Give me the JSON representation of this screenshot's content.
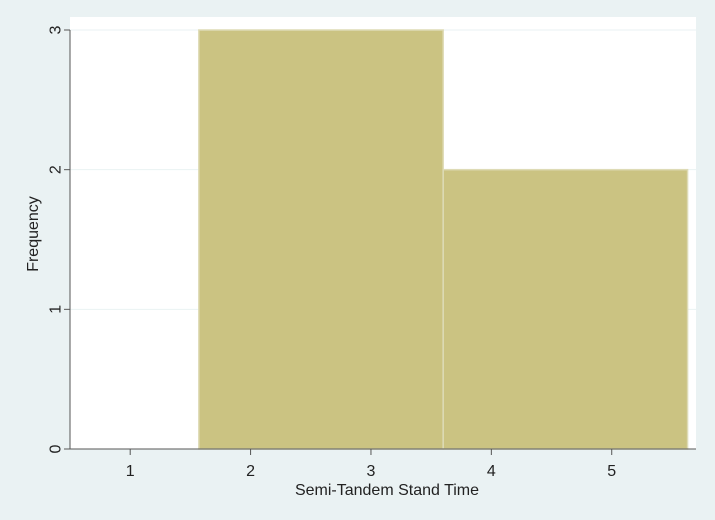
{
  "chart_data": {
    "type": "bar",
    "subtype": "histogram",
    "xlabel": "Semi-Tandem Stand Time",
    "ylabel": "Frequency",
    "xlim": [
      0.5,
      5.7
    ],
    "ylim": [
      0,
      3
    ],
    "x_ticks": [
      1,
      2,
      3,
      4,
      5
    ],
    "y_ticks": [
      0,
      1,
      2,
      3
    ],
    "grid": true,
    "bins": [
      {
        "x_start": 1.57,
        "x_end": 3.6,
        "value": 3
      },
      {
        "x_start": 3.6,
        "x_end": 5.63,
        "value": 2
      }
    ],
    "colors": {
      "bar_fill": "#cbc382",
      "bar_edge": "#dedbb6",
      "plot_background": "#ffffff",
      "outer_background": "#eaf2f3",
      "grid": "#eaf2f3",
      "axis": "#555555"
    }
  }
}
